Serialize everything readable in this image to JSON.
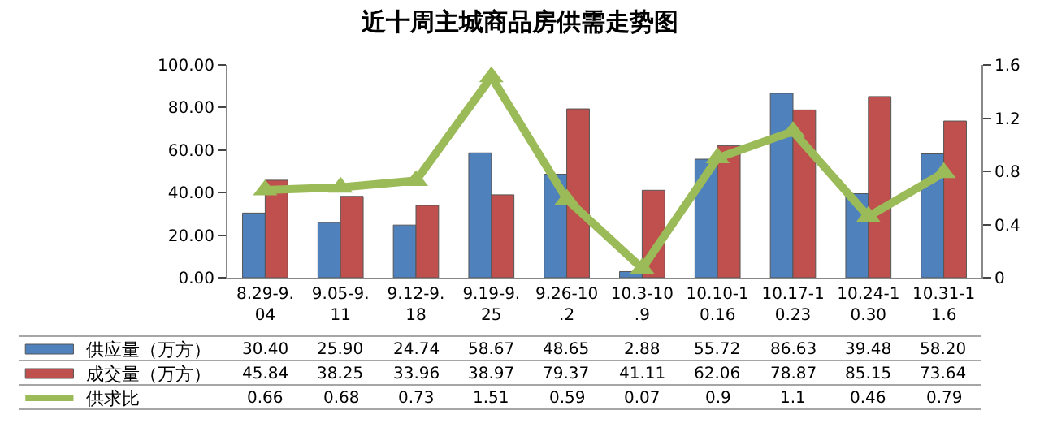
{
  "chart_data": {
    "type": "bar",
    "title": "近十周主城商品房供需走势图",
    "categories": [
      "8.29-9.04",
      "9.05-9.11",
      "9.12-9.18",
      "9.19-9.25",
      "9.26-10.2",
      "10.3-10.9",
      "10.10-10.16",
      "10.17-10.23",
      "10.24-10.30",
      "10.31-11.6"
    ],
    "series": [
      {
        "name": "供应量（万方）",
        "color": "#4f81bd",
        "values": [
          30.4,
          25.9,
          24.74,
          58.67,
          48.65,
          2.88,
          55.72,
          86.63,
          39.48,
          58.2
        ],
        "value_labels": [
          "30.40",
          "25.90",
          "24.74",
          "58.67",
          "48.65",
          "2.88",
          "55.72",
          "86.63",
          "39.48",
          "58.20"
        ]
      },
      {
        "name": "成交量（万方）",
        "color": "#c0504d",
        "values": [
          45.84,
          38.25,
          33.96,
          38.97,
          79.37,
          41.11,
          62.06,
          78.87,
          85.15,
          73.64
        ],
        "value_labels": [
          "45.84",
          "38.25",
          "33.96",
          "38.97",
          "79.37",
          "41.11",
          "62.06",
          "78.87",
          "85.15",
          "73.64"
        ]
      },
      {
        "name": "供求比",
        "color": "#9bbb59",
        "type": "line",
        "axis": "y2",
        "marker": "triangle",
        "values": [
          0.66,
          0.68,
          0.73,
          1.51,
          0.59,
          0.07,
          0.9,
          1.1,
          0.46,
          0.79
        ],
        "value_labels": [
          "0.66",
          "0.68",
          "0.73",
          "1.51",
          "0.59",
          "0.07",
          "0.9",
          "1.1",
          "0.46",
          "0.79"
        ]
      }
    ],
    "ylim": [
      0,
      100
    ],
    "yticks": [
      {
        "value": 0,
        "label": "0.00"
      },
      {
        "value": 20,
        "label": "20.00"
      },
      {
        "value": 40,
        "label": "40.00"
      },
      {
        "value": 60,
        "label": "60.00"
      },
      {
        "value": 80,
        "label": "80.00"
      },
      {
        "value": 100,
        "label": "100.00"
      }
    ],
    "y2lim": [
      0,
      1.6
    ],
    "y2ticks": [
      0,
      0.4,
      0.8,
      1.2,
      1.6
    ],
    "legend": "bottom left"
  }
}
